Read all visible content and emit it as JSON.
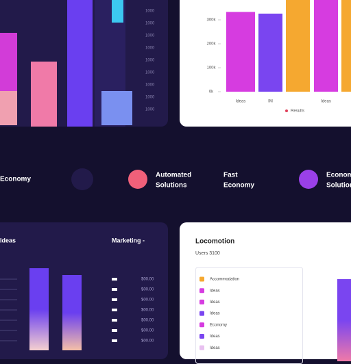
{
  "chart_data": {
    "type": "bar",
    "categories": [
      "Ideas",
      "IM",
      null,
      "Ideas",
      null
    ],
    "series": [
      {
        "name": "Results",
        "color": "#e0405a",
        "colors": [
          "#d63ce0",
          "#7a45f0",
          "#f5a830",
          "#d63ce0",
          "#f5a830"
        ],
        "values": [
          333,
          326,
          400,
          400,
          400
        ]
      }
    ],
    "ylim": [
      0,
      400
    ],
    "yticks": [
      {
        "value": 0,
        "label": "0k"
      },
      {
        "value": 100,
        "label": "100k"
      },
      {
        "value": 200,
        "label": "200k"
      },
      {
        "value": 300,
        "label": "300k"
      }
    ]
  },
  "top_left": {
    "labels": [
      "1000",
      "1000",
      "1000",
      "1000",
      "1000",
      "1000",
      "1000",
      "1000",
      "1000"
    ]
  },
  "features": [
    {
      "lines": [
        "Economy"
      ]
    },
    {
      "lines": [
        "Automated",
        "Solutions"
      ]
    },
    {
      "lines": [
        "Fast",
        "Economy"
      ]
    },
    {
      "lines": [
        "Economy",
        "Solutions"
      ]
    }
  ],
  "bottom_left": {
    "title": "Ideas",
    "heading": "Marketing -",
    "values": [
      "$00.00",
      "$00.00",
      "$00.00",
      "$00.00",
      "$00.00",
      "$00.00",
      "$00.00"
    ]
  },
  "bottom_right": {
    "title": "Locomotion",
    "subtitle": "Users 3100",
    "items": [
      "Accommodation",
      "Ideas",
      "Ideas",
      "Ideas",
      "Economy",
      "Ideas",
      "Ideas"
    ]
  }
}
